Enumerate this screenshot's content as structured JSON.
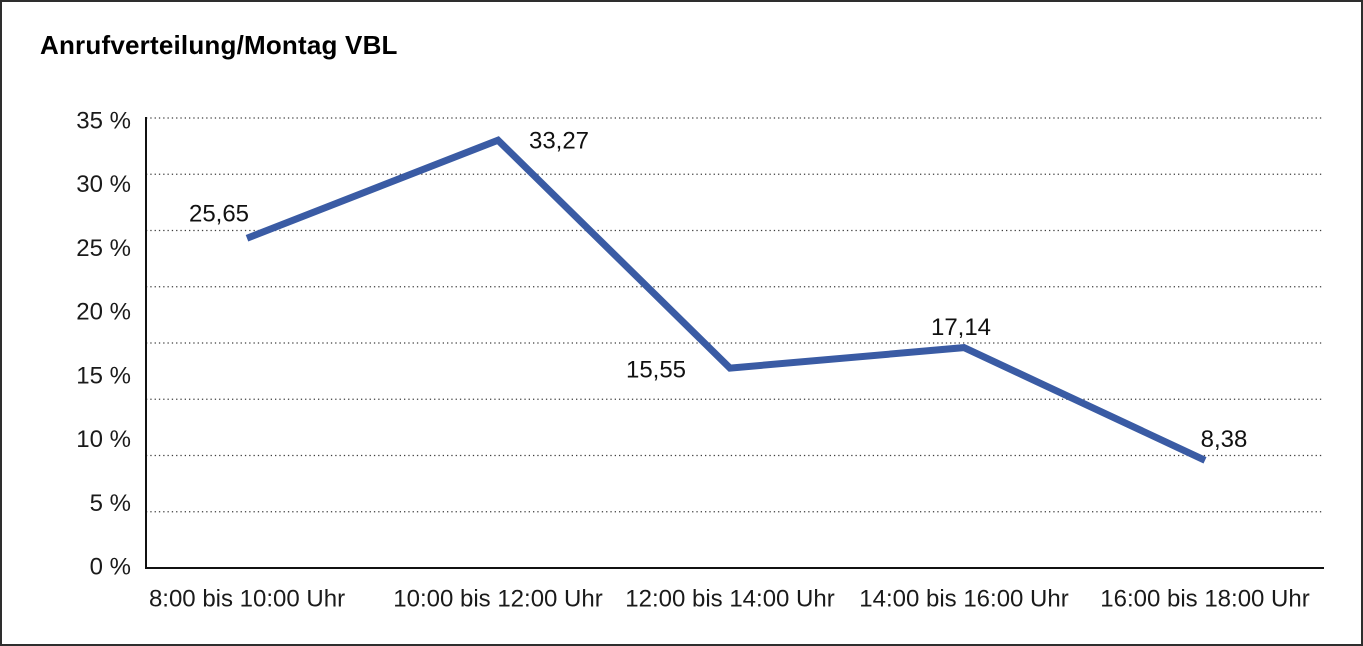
{
  "frame": {
    "title": "Anrufverteilung/Montag VBL"
  },
  "chart_data": {
    "type": "line",
    "title": "Anrufverteilung/Montag VBL",
    "categories": [
      "8:00 bis 10:00 Uhr",
      "10:00 bis 12:00 Uhr",
      "12:00 bis 14:00 Uhr",
      "14:00 bis 16:00 Uhr",
      "16:00 bis 18:00 Uhr"
    ],
    "values": [
      25.65,
      33.27,
      15.55,
      17.14,
      8.38
    ],
    "value_labels": [
      "25,65",
      "33,27",
      "15,55",
      "17,14",
      "8,38"
    ],
    "ytick_labels": [
      "35 %",
      "30 %",
      "25 %",
      "20 %",
      "15 %",
      "10 %",
      "5 %",
      "0 %"
    ],
    "xlabel": "",
    "ylabel": "",
    "ylim": [
      0,
      35
    ],
    "grid": "horizontal-dotted",
    "legend": "none",
    "line_color": "#3a5ba4",
    "axis_color": "#111111",
    "grid_color": "#3f3f3f",
    "text_color": "#1a1a1a"
  }
}
